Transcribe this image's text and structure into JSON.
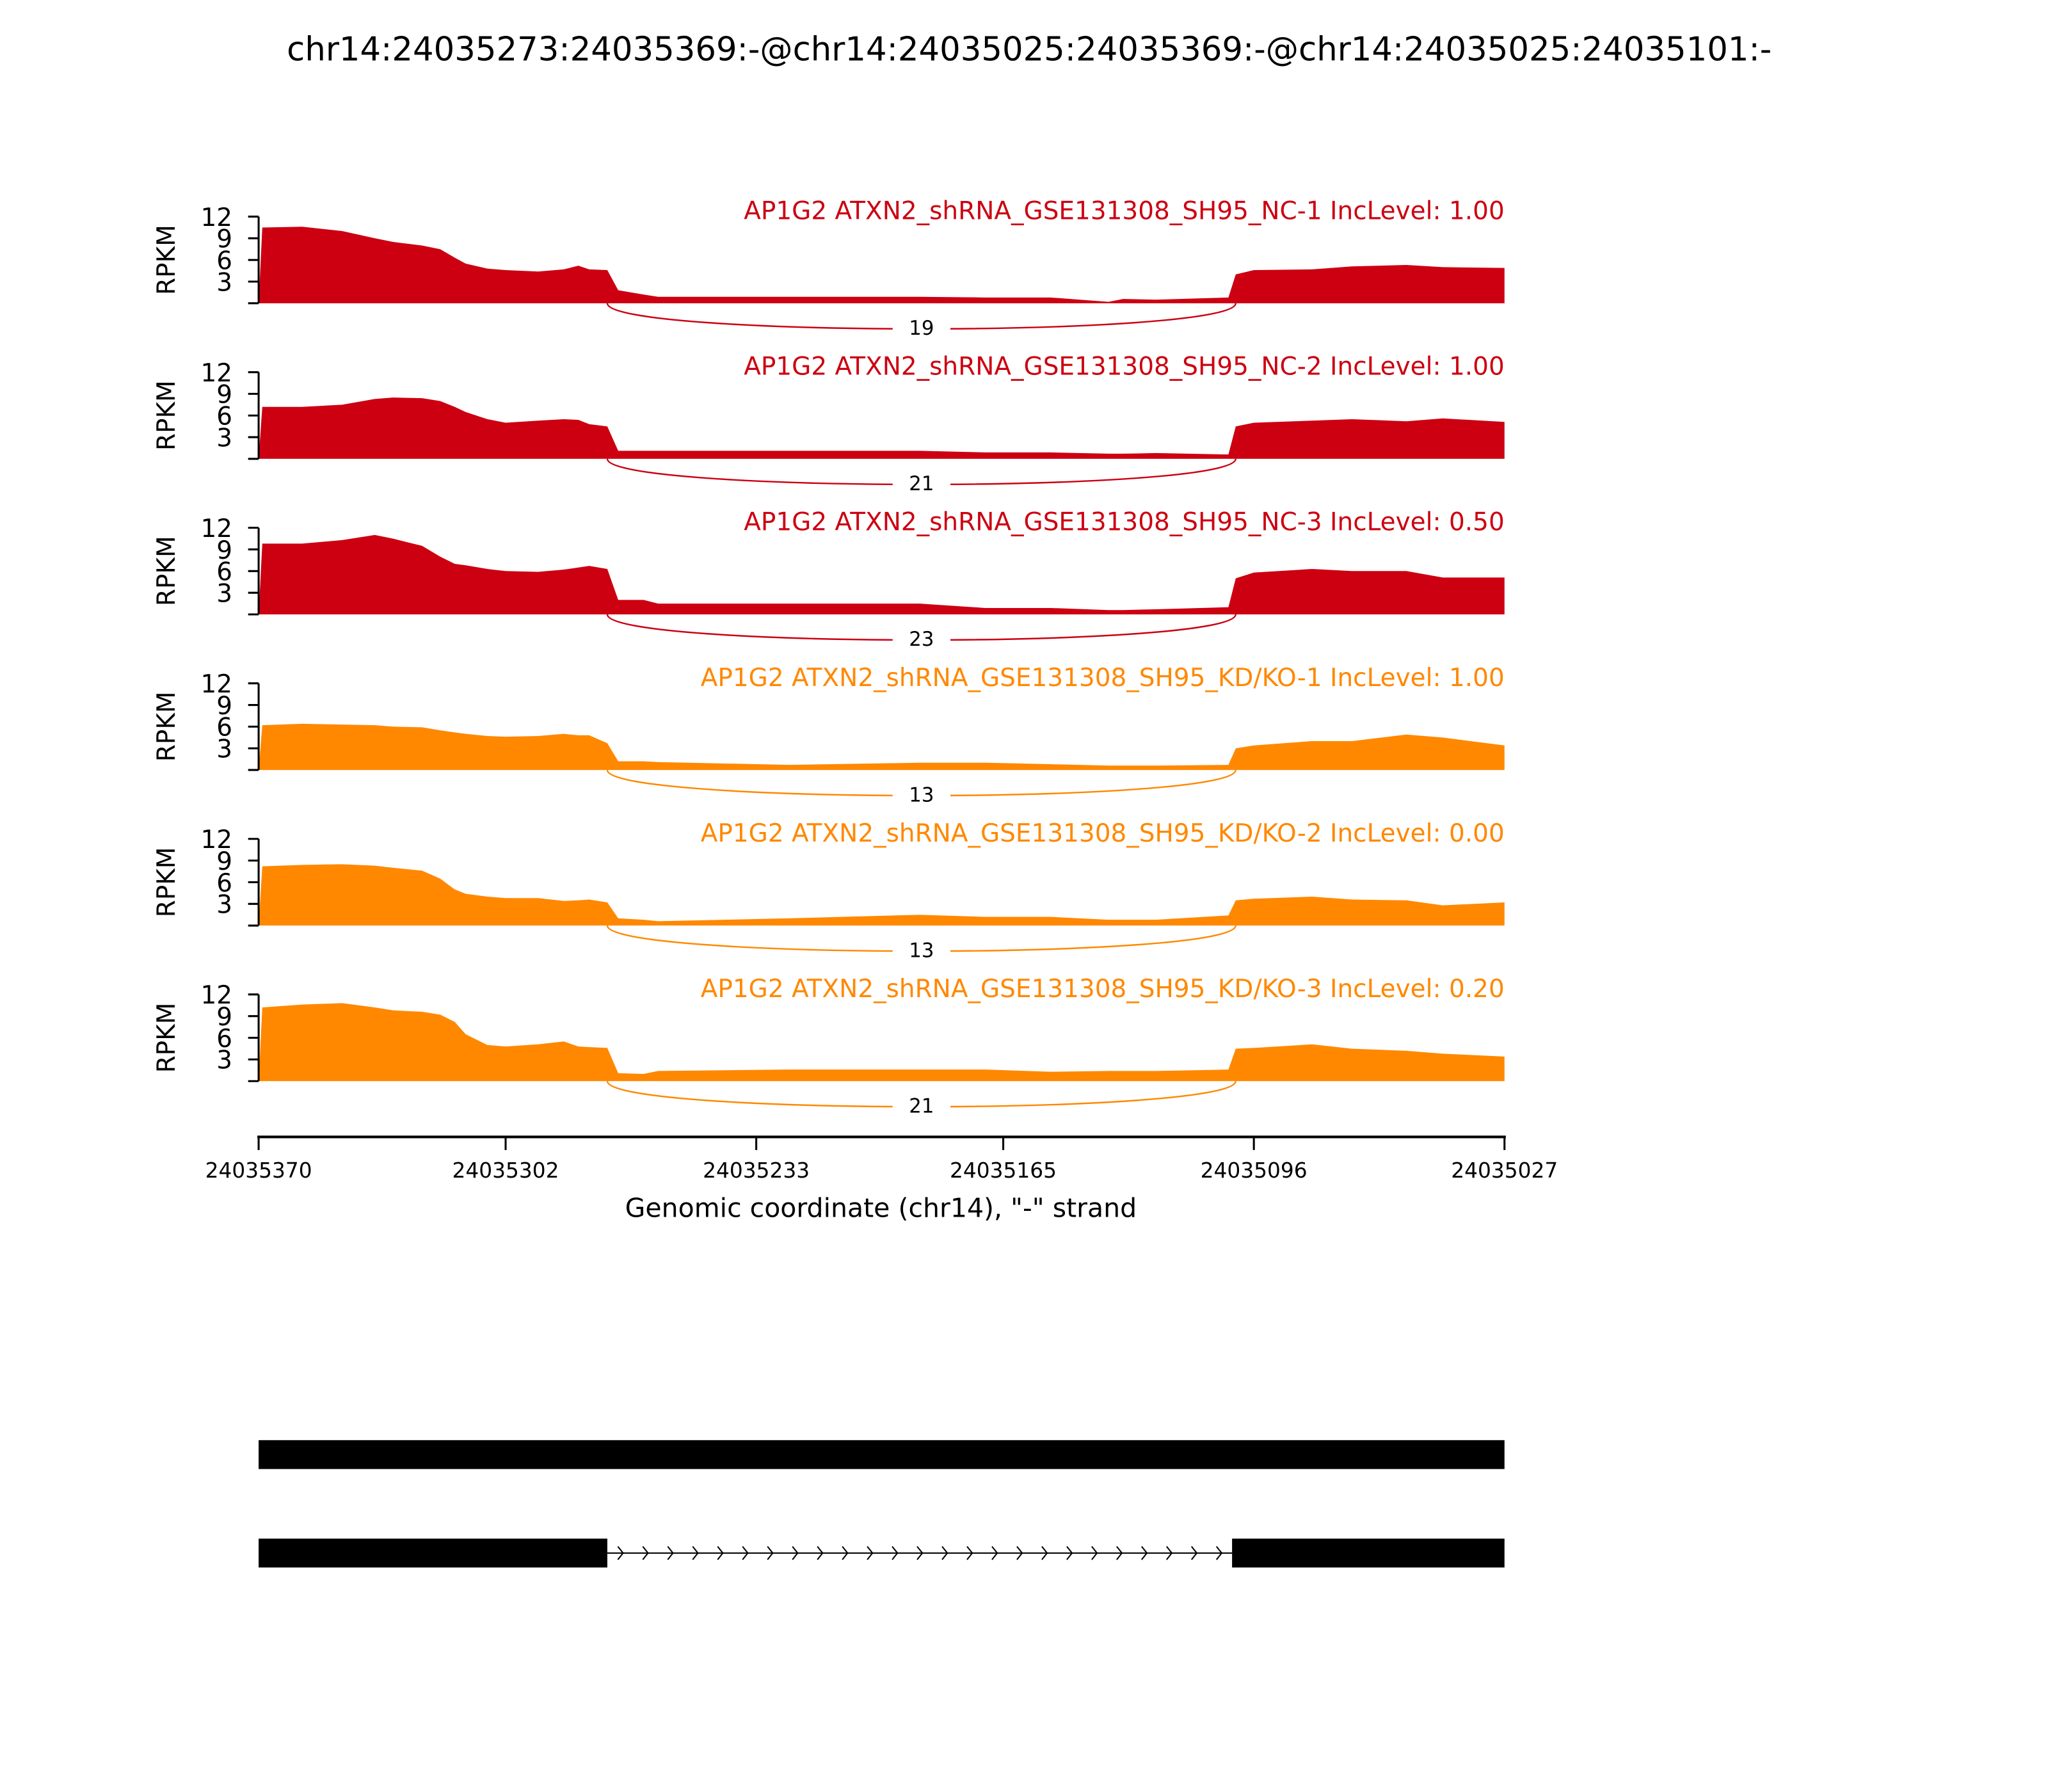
{
  "chart_data": {
    "type": "area",
    "title": "chr14:24035273:24035369:-@chr14:24035025:24035369:-@chr14:24035025:24035101:-",
    "xlabel": "Genomic coordinate (chr14), \"-\" strand",
    "ylabel": "RPKM",
    "xlim": [
      24035370,
      24035027
    ],
    "x_reversed": true,
    "xticks": [
      "24035370",
      "24035302",
      "24035233",
      "24035165",
      "24035096",
      "24035027"
    ],
    "ylim": [
      0,
      12
    ],
    "yticks": [
      "3",
      "6",
      "9",
      "12"
    ],
    "grid": false,
    "x": [
      24035369,
      24035358,
      24035347,
      24035338,
      24035333,
      24035325,
      24035320,
      24035316,
      24035313,
      24035307,
      24035302,
      24035293,
      24035286,
      24035282,
      24035279,
      24035274,
      24035271,
      24035264,
      24035260,
      24035224,
      24035188,
      24035170,
      24035152,
      24035136,
      24035132,
      24035123,
      24035103,
      24035101,
      24035096,
      24035080,
      24035069,
      24035054,
      24035044,
      24035027
    ],
    "junction": {
      "start": 24035274,
      "end": 24035101
    },
    "series": [
      {
        "name": "AP1G2 ATXN2_shRNA_GSE131308_SH95_NC-1 IncLevel: 1.00",
        "color": "#cc0011",
        "junction_count": "19",
        "values": [
          10.5,
          10.6,
          10,
          9,
          8.5,
          8,
          7.5,
          6.3,
          5.5,
          4.8,
          4.6,
          4.4,
          4.7,
          5.2,
          4.7,
          4.6,
          1.8,
          1.2,
          0.9,
          0.9,
          0.9,
          0.8,
          0.8,
          0.2,
          0.6,
          0.5,
          0.8,
          4,
          4.6,
          4.7,
          5.1,
          5.3,
          5,
          4.9
        ]
      },
      {
        "name": "AP1G2 ATXN2_shRNA_GSE131308_SH95_NC-2 IncLevel: 1.00",
        "color": "#cc0011",
        "junction_count": "21",
        "values": [
          7.2,
          7.2,
          7.5,
          8.3,
          8.5,
          8.4,
          8,
          7.2,
          6.5,
          5.5,
          5,
          5.3,
          5.5,
          5.4,
          4.8,
          4.5,
          1.1,
          1.1,
          1.1,
          1.1,
          1.1,
          0.9,
          0.9,
          0.7,
          0.7,
          0.8,
          0.6,
          4.5,
          5,
          5.3,
          5.5,
          5.2,
          5.6,
          5.1
        ]
      },
      {
        "name": "AP1G2 ATXN2_shRNA_GSE131308_SH95_NC-3 IncLevel: 0.50",
        "color": "#cc0011",
        "junction_count": "23",
        "values": [
          9.8,
          9.8,
          10.3,
          11,
          10.5,
          9.5,
          8,
          7,
          6.8,
          6.3,
          6,
          5.9,
          6.2,
          6.5,
          6.7,
          6.3,
          2,
          2,
          1.5,
          1.5,
          1.5,
          0.9,
          0.9,
          0.6,
          0.6,
          0.7,
          1,
          5,
          5.8,
          6.3,
          6,
          6,
          5.1,
          5.1
        ]
      },
      {
        "name": "AP1G2 ATXN2_shRNA_GSE131308_SH95_KD/KO-1 IncLevel: 1.00",
        "color": "#ff8800",
        "junction_count": "13",
        "values": [
          6.2,
          6.4,
          6.3,
          6.2,
          6,
          5.9,
          5.5,
          5.2,
          5,
          4.7,
          4.6,
          4.7,
          5,
          4.8,
          4.8,
          3.7,
          1.2,
          1.2,
          1.1,
          0.7,
          1,
          1,
          0.8,
          0.6,
          0.6,
          0.6,
          0.7,
          3,
          3.4,
          4,
          4,
          4.9,
          4.5,
          3.4
        ]
      },
      {
        "name": "AP1G2 ATXN2_shRNA_GSE131308_SH95_KD/KO-2 IncLevel: 0.00",
        "color": "#ff8800",
        "junction_count": "13",
        "values": [
          8.2,
          8.4,
          8.5,
          8.3,
          8,
          7.6,
          6.5,
          5,
          4.4,
          4,
          3.8,
          3.8,
          3.4,
          3.5,
          3.6,
          3.2,
          1,
          0.8,
          0.6,
          1,
          1.5,
          1.2,
          1.2,
          0.8,
          0.8,
          0.8,
          1.4,
          3.5,
          3.7,
          4,
          3.6,
          3.5,
          2.8,
          3.2
        ]
      },
      {
        "name": "AP1G2 ATXN2_shRNA_GSE131308_SH95_KD/KO-3 IncLevel: 0.20",
        "color": "#ff8800",
        "junction_count": "21",
        "values": [
          10.2,
          10.6,
          10.8,
          10.2,
          9.8,
          9.6,
          9.2,
          8.2,
          6.5,
          5,
          4.8,
          5.1,
          5.5,
          4.8,
          4.7,
          4.6,
          1.1,
          1,
          1.4,
          1.6,
          1.6,
          1.6,
          1.3,
          1.4,
          1.4,
          1.4,
          1.6,
          4.5,
          4.6,
          5.1,
          4.5,
          4.2,
          3.8,
          3.4
        ]
      }
    ],
    "gene_models": [
      {
        "exons": [
          [
            24035370,
            24035027
          ]
        ]
      },
      {
        "exons": [
          [
            24035370,
            24035274
          ],
          [
            24035102,
            24035027
          ]
        ]
      }
    ]
  }
}
